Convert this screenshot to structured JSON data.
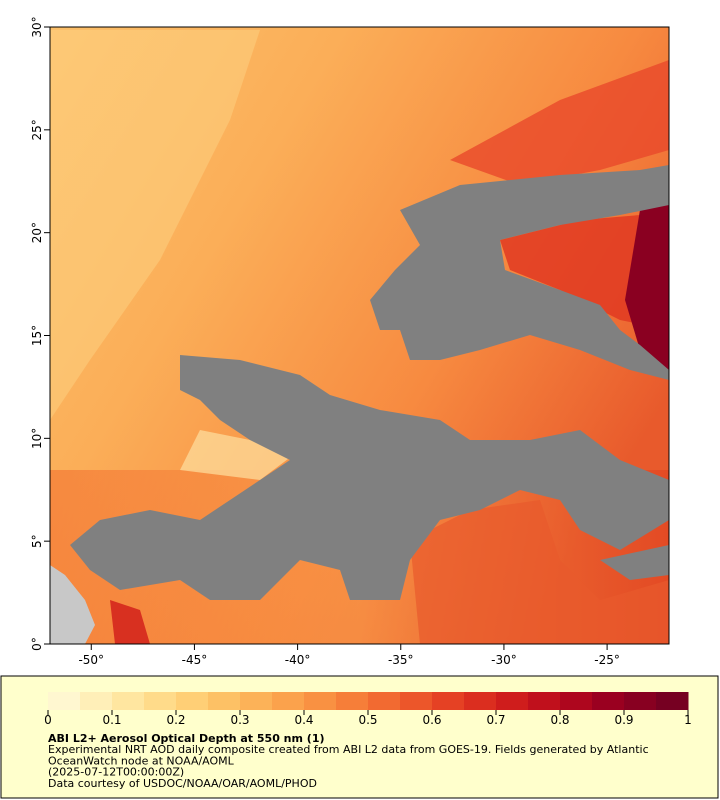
{
  "map": {
    "type": "map",
    "xlim": [
      -52,
      -22
    ],
    "ylim": [
      0,
      30
    ],
    "xticks": [
      {
        "value": -50,
        "label": "-50°"
      },
      {
        "value": -45,
        "label": "-45°"
      },
      {
        "value": -40,
        "label": "-40°"
      },
      {
        "value": -35,
        "label": "-35°"
      },
      {
        "value": -30,
        "label": "-30°"
      },
      {
        "value": -25,
        "label": "-25°"
      }
    ],
    "yticks": [
      {
        "value": 0,
        "label": "0°"
      },
      {
        "value": 5,
        "label": "5°"
      },
      {
        "value": 10,
        "label": "10°"
      },
      {
        "value": 15,
        "label": "15°"
      },
      {
        "value": 20,
        "label": "20°"
      },
      {
        "value": 25,
        "label": "25°"
      },
      {
        "value": 30,
        "label": "30°"
      }
    ],
    "cloud_color": "#808080",
    "land_color": "#c8c8c8"
  },
  "colorbar": {
    "lim": [
      0,
      1
    ],
    "ticks": [
      0,
      0.1,
      0.2,
      0.3,
      0.4,
      0.5,
      0.6,
      0.7,
      0.8,
      0.9,
      1
    ],
    "colors": [
      "#fff7d0",
      "#ffefb8",
      "#ffe6a0",
      "#ffdb8a",
      "#ffcf76",
      "#fdc165",
      "#fcb258",
      "#fba24c",
      "#f99142",
      "#f67e39",
      "#f26a31",
      "#ec562a",
      "#e54124",
      "#db2e1f",
      "#cf1d1c",
      "#c0101c",
      "#ae061e",
      "#9a0020",
      "#880021",
      "#760022"
    ]
  },
  "caption": {
    "title": "ABI L2+ Aerosol Optical Depth at 550 nm (1)",
    "lines": [
      "Experimental NRT AOD daily composite created from ABI L2 data from GOES-19. Fields generated by Atlantic",
      "OceanWatch node at NOAA/AOML",
      "(2025-07-12T00:00:00Z)",
      "Data courtesy of USDOC/NOAA/OAR/AOML/PHOD"
    ]
  }
}
